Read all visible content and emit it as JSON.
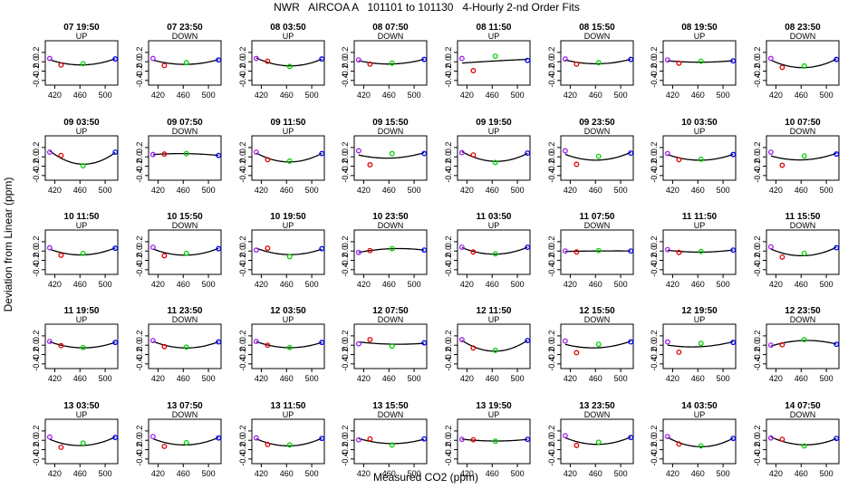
{
  "chart_data": {
    "type": "scatter",
    "title": "NWR   AIRCOA A   101101 to 101130   4-Hourly 2-nd Order Fits",
    "xlabel": "Measured CO2 (ppm)",
    "ylabel": "Deviation from Linear (ppm)",
    "xlim": [
      405,
      520
    ],
    "ylim": [
      -0.5,
      0.45
    ],
    "xticks": [
      420,
      460,
      500
    ],
    "yticks": [
      -0.4,
      -0.2,
      0.0,
      0.2
    ],
    "ytick_labels": [
      "-0.4",
      "-0.2",
      "0.0",
      "0.2"
    ],
    "standard_x": [
      412,
      430,
      465,
      516
    ],
    "standard_colors": [
      "#a020f0",
      "#e00000",
      "#00d000",
      "#0000ff"
    ],
    "fit_color": "#000000",
    "grid": false,
    "layout": {
      "rows": 5,
      "cols": 8
    },
    "panels": [
      {
        "time": "07 19:50",
        "mode": "UP",
        "points": [
          0.07,
          -0.07,
          -0.04,
          0.06
        ]
      },
      {
        "time": "07 23:50",
        "mode": "DOWN",
        "points": [
          0.07,
          -0.08,
          -0.02,
          0.04
        ]
      },
      {
        "time": "08 03:50",
        "mode": "UP",
        "points": [
          0.07,
          0.01,
          -0.1,
          0.06
        ]
      },
      {
        "time": "08 07:50",
        "mode": "DOWN",
        "points": [
          0.04,
          -0.05,
          -0.03,
          0.05
        ]
      },
      {
        "time": "08 11:50",
        "mode": "UP",
        "points": [
          0.07,
          -0.19,
          0.12,
          0.03
        ]
      },
      {
        "time": "08 15:50",
        "mode": "DOWN",
        "points": [
          0.06,
          -0.05,
          -0.02,
          0.05
        ]
      },
      {
        "time": "08 19:50",
        "mode": "UP",
        "points": [
          0.04,
          -0.03,
          0.01,
          0.02
        ]
      },
      {
        "time": "08 23:50",
        "mode": "DOWN",
        "points": [
          0.07,
          -0.12,
          -0.09,
          0.05
        ]
      },
      {
        "time": "09 03:50",
        "mode": "UP",
        "points": [
          0.1,
          0.03,
          -0.19,
          0.1
        ]
      },
      {
        "time": "09 07:50",
        "mode": "DOWN",
        "points": [
          0.05,
          0.06,
          0.07,
          0.03
        ]
      },
      {
        "time": "09 11:50",
        "mode": "UP",
        "points": [
          0.1,
          -0.06,
          -0.09,
          0.07
        ]
      },
      {
        "time": "09 15:50",
        "mode": "DOWN",
        "points": [
          0.13,
          -0.17,
          0.07,
          0.07
        ]
      },
      {
        "time": "09 19:50",
        "mode": "UP",
        "points": [
          0.09,
          0.04,
          -0.12,
          0.08
        ]
      },
      {
        "time": "09 23:50",
        "mode": "DOWN",
        "points": [
          0.13,
          -0.16,
          0.01,
          0.08
        ]
      },
      {
        "time": "10 03:50",
        "mode": "UP",
        "points": [
          0.07,
          -0.06,
          -0.05,
          0.05
        ]
      },
      {
        "time": "10 07:50",
        "mode": "DOWN",
        "points": [
          0.1,
          -0.18,
          0.02,
          0.06
        ]
      },
      {
        "time": "10 11:50",
        "mode": "UP",
        "points": [
          0.07,
          -0.09,
          -0.05,
          0.06
        ]
      },
      {
        "time": "10 15:50",
        "mode": "DOWN",
        "points": [
          0.08,
          -0.1,
          -0.05,
          0.05
        ]
      },
      {
        "time": "10 19:50",
        "mode": "UP",
        "points": [
          0.02,
          0.06,
          -0.12,
          0.05
        ]
      },
      {
        "time": "10 23:50",
        "mode": "DOWN",
        "points": [
          -0.03,
          0.01,
          0.05,
          0.02
        ]
      },
      {
        "time": "11 03:50",
        "mode": "UP",
        "points": [
          0.08,
          -0.02,
          -0.06,
          0.08
        ]
      },
      {
        "time": "11 07:50",
        "mode": "DOWN",
        "points": [
          0.0,
          -0.02,
          0.01,
          0.0
        ]
      },
      {
        "time": "11 11:50",
        "mode": "UP",
        "points": [
          0.03,
          -0.03,
          -0.01,
          0.02
        ]
      },
      {
        "time": "11 15:50",
        "mode": "DOWN",
        "points": [
          0.09,
          -0.13,
          -0.05,
          0.07
        ]
      },
      {
        "time": "11 19:50",
        "mode": "UP",
        "points": [
          0.08,
          -0.01,
          -0.05,
          0.06
        ]
      },
      {
        "time": "11 23:50",
        "mode": "DOWN",
        "points": [
          0.1,
          -0.03,
          -0.04,
          0.07
        ]
      },
      {
        "time": "12 03:50",
        "mode": "UP",
        "points": [
          0.08,
          0.0,
          -0.05,
          0.06
        ]
      },
      {
        "time": "12 07:50",
        "mode": "DOWN",
        "points": [
          0.03,
          0.12,
          -0.02,
          0.05
        ]
      },
      {
        "time": "12 11:50",
        "mode": "UP",
        "points": [
          0.12,
          -0.06,
          -0.11,
          0.1
        ]
      },
      {
        "time": "12 15:50",
        "mode": "DOWN",
        "points": [
          0.09,
          -0.16,
          0.02,
          0.07
        ]
      },
      {
        "time": "12 19:50",
        "mode": "UP",
        "points": [
          0.07,
          -0.15,
          0.04,
          0.06
        ]
      },
      {
        "time": "12 23:50",
        "mode": "DOWN",
        "points": [
          0.0,
          0.01,
          0.12,
          0.02
        ]
      },
      {
        "time": "13 03:50",
        "mode": "UP",
        "points": [
          0.07,
          -0.15,
          -0.06,
          0.06
        ]
      },
      {
        "time": "13 07:50",
        "mode": "DOWN",
        "points": [
          0.08,
          -0.13,
          -0.05,
          0.05
        ]
      },
      {
        "time": "13 11:50",
        "mode": "UP",
        "points": [
          0.05,
          -0.09,
          -0.1,
          0.04
        ]
      },
      {
        "time": "13 15:50",
        "mode": "DOWN",
        "points": [
          0.01,
          0.03,
          -0.1,
          0.03
        ]
      },
      {
        "time": "13 19:50",
        "mode": "UP",
        "points": [
          0.02,
          0.01,
          -0.02,
          0.02
        ]
      },
      {
        "time": "13 23:50",
        "mode": "DOWN",
        "points": [
          0.1,
          -0.11,
          -0.04,
          0.06
        ]
      },
      {
        "time": "14 03:50",
        "mode": "UP",
        "points": [
          0.08,
          -0.08,
          -0.12,
          0.04
        ]
      },
      {
        "time": "14 07:50",
        "mode": "DOWN",
        "points": [
          0.05,
          0.02,
          -0.12,
          0.04
        ]
      }
    ]
  }
}
